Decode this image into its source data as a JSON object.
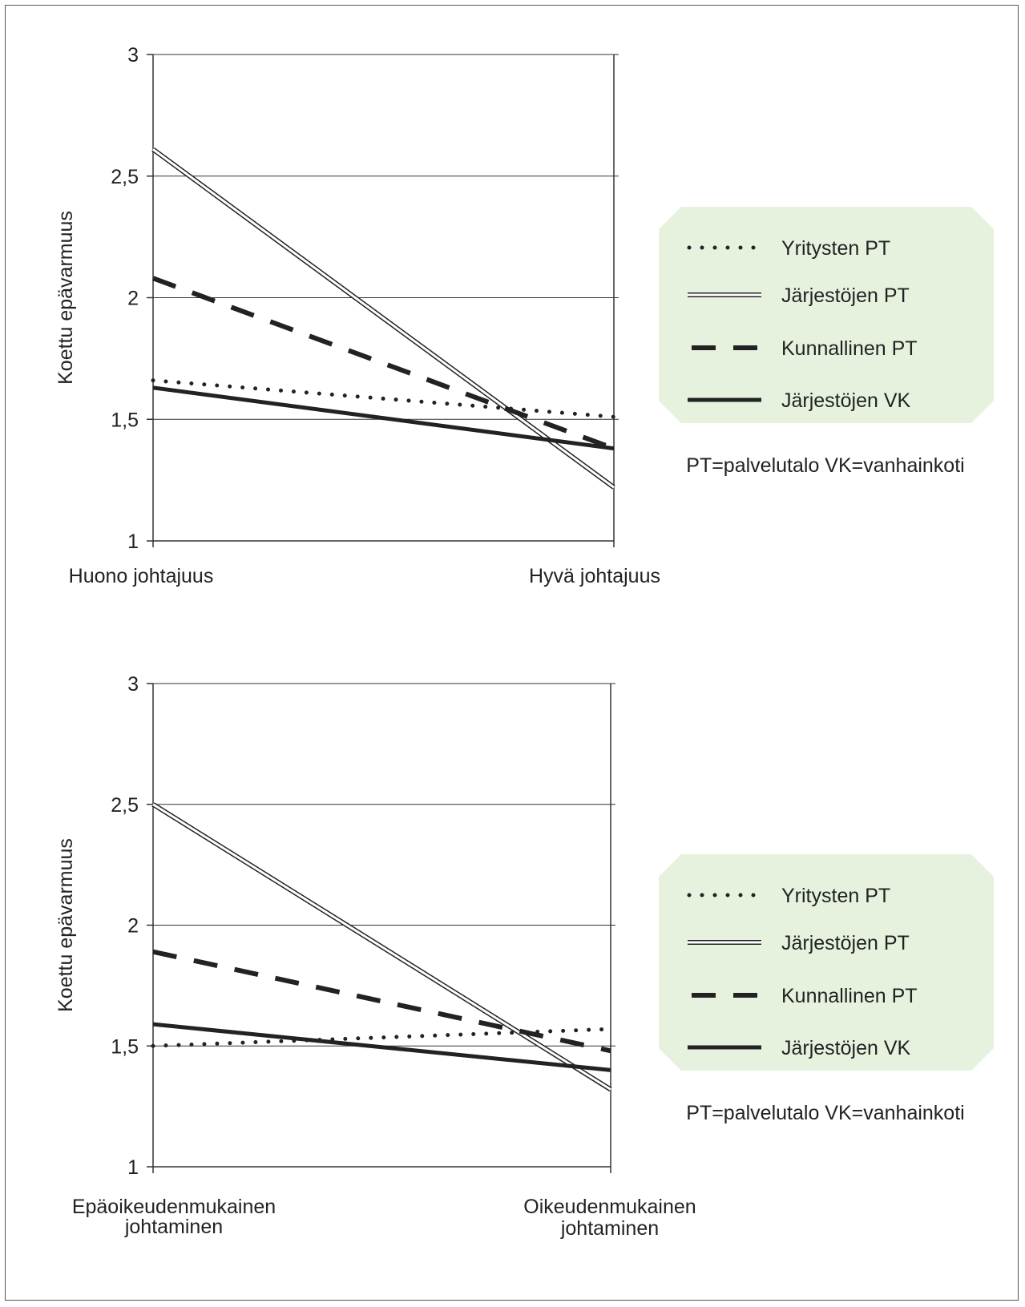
{
  "chart_data": [
    {
      "type": "line",
      "title": "",
      "ylabel": "Koettu epävarmuus",
      "xlabel": "",
      "categories": [
        "Huono johtajuus",
        "Hyvä johtajuus"
      ],
      "ylim": [
        1,
        3
      ],
      "yticks": [
        "1",
        "1,5",
        "2",
        "2,5",
        "3"
      ],
      "series": [
        {
          "name": "Yritysten PT",
          "style": "dotted",
          "values": [
            1.66,
            1.51
          ]
        },
        {
          "name": "Järjestöjen PT",
          "style": "double",
          "values": [
            2.61,
            1.22
          ]
        },
        {
          "name": "Kunnallinen PT",
          "style": "dashed",
          "values": [
            2.08,
            1.38
          ]
        },
        {
          "name": "Järjestöjen VK",
          "style": "solid",
          "values": [
            1.63,
            1.38
          ]
        }
      ],
      "legend_position": "right",
      "legend_note": "PT=palvelutalo VK=vanhainkoti"
    },
    {
      "type": "line",
      "title": "",
      "ylabel": "Koettu epävarmuus",
      "xlabel": "",
      "categories": [
        "Epäoikeudenmukainen johtaminen",
        "Oikeudenmukainen johtaminen"
      ],
      "ylim": [
        1,
        3
      ],
      "yticks": [
        "1",
        "1,5",
        "2",
        "2,5",
        "3"
      ],
      "series": [
        {
          "name": "Yritysten PT",
          "style": "dotted",
          "values": [
            1.5,
            1.57
          ]
        },
        {
          "name": "Järjestöjen PT",
          "style": "double",
          "values": [
            2.5,
            1.32
          ]
        },
        {
          "name": "Kunnallinen PT",
          "style": "dashed",
          "values": [
            1.89,
            1.48
          ]
        },
        {
          "name": "Järjestöjen VK",
          "style": "solid",
          "values": [
            1.59,
            1.4
          ]
        }
      ],
      "legend_position": "right",
      "legend_note": "PT=palvelutalo VK=vanhainkoti"
    }
  ],
  "colors": {
    "legend_bg": "#e6f2de",
    "line": "#222222",
    "grid": "#333333"
  }
}
